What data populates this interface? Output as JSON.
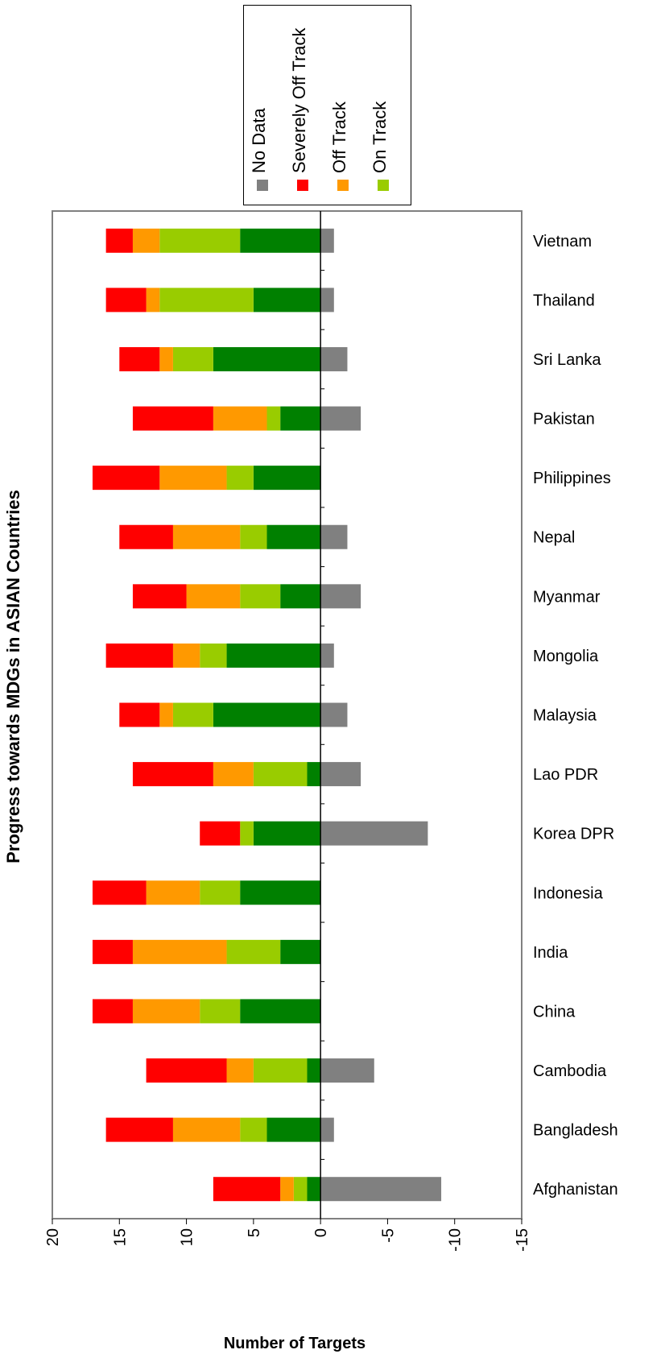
{
  "chart_data": {
    "type": "bar",
    "orientation": "horizontal",
    "stacked": true,
    "title": "Progress towards MDGs in ASIAN Countries",
    "xlabel": "Number of Targets",
    "xlim": [
      20,
      -15
    ],
    "xticks": [
      "20",
      "15",
      "10",
      "5",
      "0",
      "-5",
      "-10",
      "-15"
    ],
    "xtick_values": [
      20,
      15,
      10,
      5,
      0,
      -5,
      -10,
      -15
    ],
    "categories": [
      "Vietnam",
      "Thailand",
      "Sri Lanka",
      "Pakistan",
      "Philippines",
      "Nepal",
      "Myanmar",
      "Mongolia",
      "Malaysia",
      "Lao PDR",
      "Korea DPR",
      "Indonesia",
      "India",
      "China",
      "Cambodia",
      "Bangladesh",
      "Afghanistan"
    ],
    "series": [
      {
        "name": "No Data",
        "color": "#808080",
        "values": [
          -1,
          -1,
          -2,
          -3,
          0,
          -2,
          -3,
          -1,
          -2,
          -3,
          -8,
          0,
          0,
          0,
          -4,
          -1,
          -9
        ]
      },
      {
        "name": "",
        "color": "#008000",
        "values": [
          6,
          5,
          8,
          3,
          5,
          4,
          3,
          7,
          8,
          1,
          5,
          6,
          3,
          6,
          1,
          4,
          1
        ]
      },
      {
        "name": "On Track",
        "color": "#99cc00",
        "values": [
          6,
          7,
          3,
          1,
          2,
          2,
          3,
          2,
          3,
          4,
          1,
          3,
          4,
          3,
          4,
          2,
          1
        ]
      },
      {
        "name": "Off Track",
        "color": "#ff9900",
        "values": [
          2,
          1,
          1,
          4,
          5,
          5,
          4,
          2,
          1,
          3,
          0,
          4,
          7,
          5,
          2,
          5,
          1
        ]
      },
      {
        "name": "Severely Off Track",
        "color": "#ff0000",
        "values": [
          2,
          3,
          3,
          6,
          5,
          4,
          4,
          5,
          3,
          6,
          3,
          4,
          3,
          3,
          6,
          5,
          5
        ]
      }
    ],
    "grid": false,
    "legend_position": "top",
    "legend_items": [
      {
        "label": "No Data",
        "color": "#808080"
      },
      {
        "label": "Severely Off Track",
        "color": "#ff0000"
      },
      {
        "label": "Off Track",
        "color": "#ff9900"
      },
      {
        "label": "On Track",
        "color": "#99cc00"
      }
    ]
  }
}
